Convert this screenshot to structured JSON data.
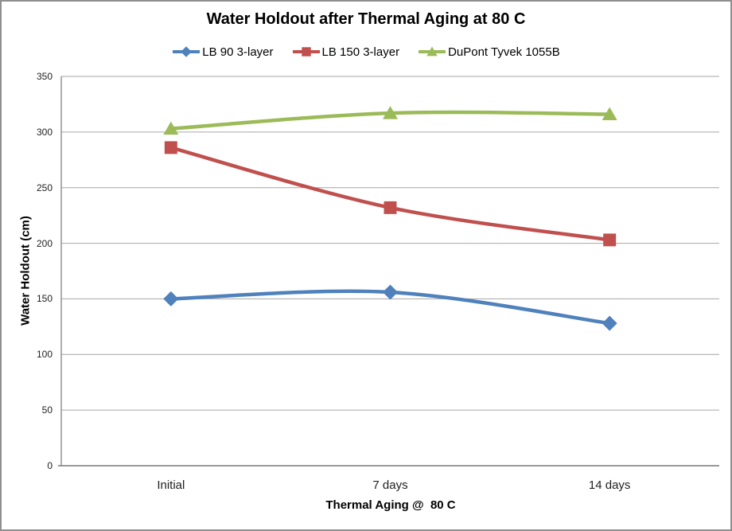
{
  "window": {
    "frame_border_color": "#8f8f8f",
    "background": "#ffffff"
  },
  "chart_data": {
    "type": "line",
    "title": "Water Holdout after Thermal Aging at 80 C",
    "xlabel": "Thermal Aging @  80 C",
    "ylabel": "Water Holdout (cm)",
    "categories": [
      "Initial",
      "7 days",
      "14 days"
    ],
    "series": [
      {
        "name": "LB 90 3-layer",
        "values": [
          150,
          156,
          128
        ],
        "color": "#4F81BD",
        "marker": "diamond"
      },
      {
        "name": "LB 150 3-layer",
        "values": [
          286,
          232,
          203
        ],
        "color": "#C0504D",
        "marker": "square"
      },
      {
        "name": "DuPont Tyvek 1055B",
        "values": [
          303,
          317,
          316
        ],
        "color": "#9BBB59",
        "marker": "triangle"
      }
    ],
    "ylim": [
      0,
      350
    ],
    "ytick_step": 50,
    "yticks": [
      0,
      50,
      100,
      150,
      200,
      250,
      300,
      350
    ],
    "grid": true,
    "smooth_lines": true,
    "legend_position": "top",
    "gridline_color": "#a6a6a6",
    "axis_color": "#8a8a8a",
    "line_width": 4.5
  }
}
